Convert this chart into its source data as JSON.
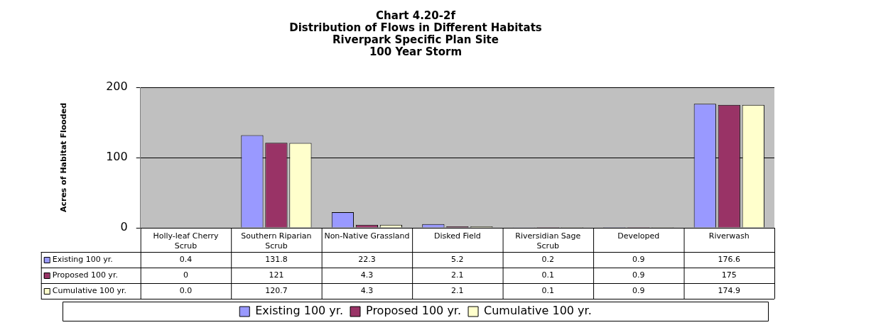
{
  "chart_data": {
    "type": "bar",
    "title": "Chart 4.20-2f\nDistribution of Flows in Different Habitats\nRiverpark Specific Plan Site\n100 Year Storm",
    "ylabel": "Acres of Habitat Flooded",
    "categories": [
      "Holly-leaf Cherry Scrub",
      "Southern Riparian Scrub",
      "Non-Native Grassland",
      "Disked Field",
      "Riversidian Sage Scrub",
      "Developed",
      "Riverwash"
    ],
    "series": [
      {
        "name": "Existing 100 yr.",
        "color": "#9999ff",
        "values": [
          0.4,
          131.8,
          22.3,
          5.2,
          0.2,
          0.9,
          176.6
        ],
        "value_labels": [
          "0.4",
          "131.8",
          "22.3",
          "5.2",
          "0.2",
          "0.9",
          "176.6"
        ]
      },
      {
        "name": "Proposed 100 yr.",
        "color": "#993366",
        "values": [
          0,
          121,
          4.3,
          2.1,
          0.1,
          0.9,
          175
        ],
        "value_labels": [
          "0",
          "121",
          "4.3",
          "2.1",
          "0.1",
          "0.9",
          "175"
        ]
      },
      {
        "name": "Cumulative 100 yr.",
        "color": "#ffffcc",
        "values": [
          0,
          120.7,
          4.3,
          2.1,
          0.1,
          0.9,
          174.9
        ],
        "value_labels": [
          "0.0",
          "120.7",
          "4.3",
          "2.1",
          "0.1",
          "0.9",
          "174.9"
        ]
      }
    ],
    "ylim": [
      0,
      200
    ],
    "yticks": [
      0,
      100,
      200
    ],
    "grid": "y",
    "legend": "bottom"
  }
}
